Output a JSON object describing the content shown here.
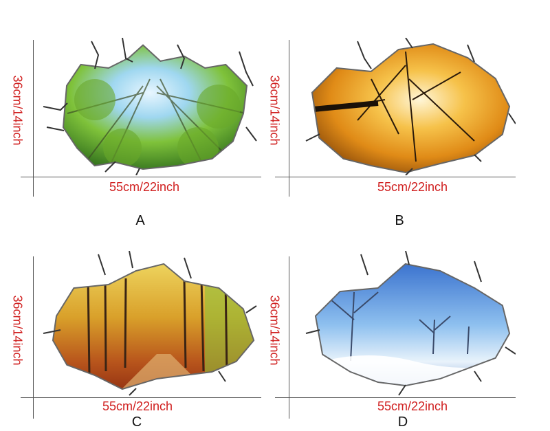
{
  "panels": [
    {
      "letter": "A",
      "width_label": "55cm/22inch",
      "height_label": "36cm/14inch",
      "scene": "summer-forest-canopy"
    },
    {
      "letter": "B",
      "width_label": "55cm/22inch",
      "height_label": "36cm/14inch",
      "scene": "autumn-tree-canopy"
    },
    {
      "letter": "C",
      "width_label": "55cm/22inch",
      "height_label": "36cm/14inch",
      "scene": "autumn-forest-path"
    },
    {
      "letter": "D",
      "width_label": "55cm/22inch",
      "height_label": "36cm/14inch",
      "scene": "winter-snow-trees"
    }
  ],
  "colors": {
    "dimension_text": "#d01f1f",
    "letter_text": "#111111"
  }
}
